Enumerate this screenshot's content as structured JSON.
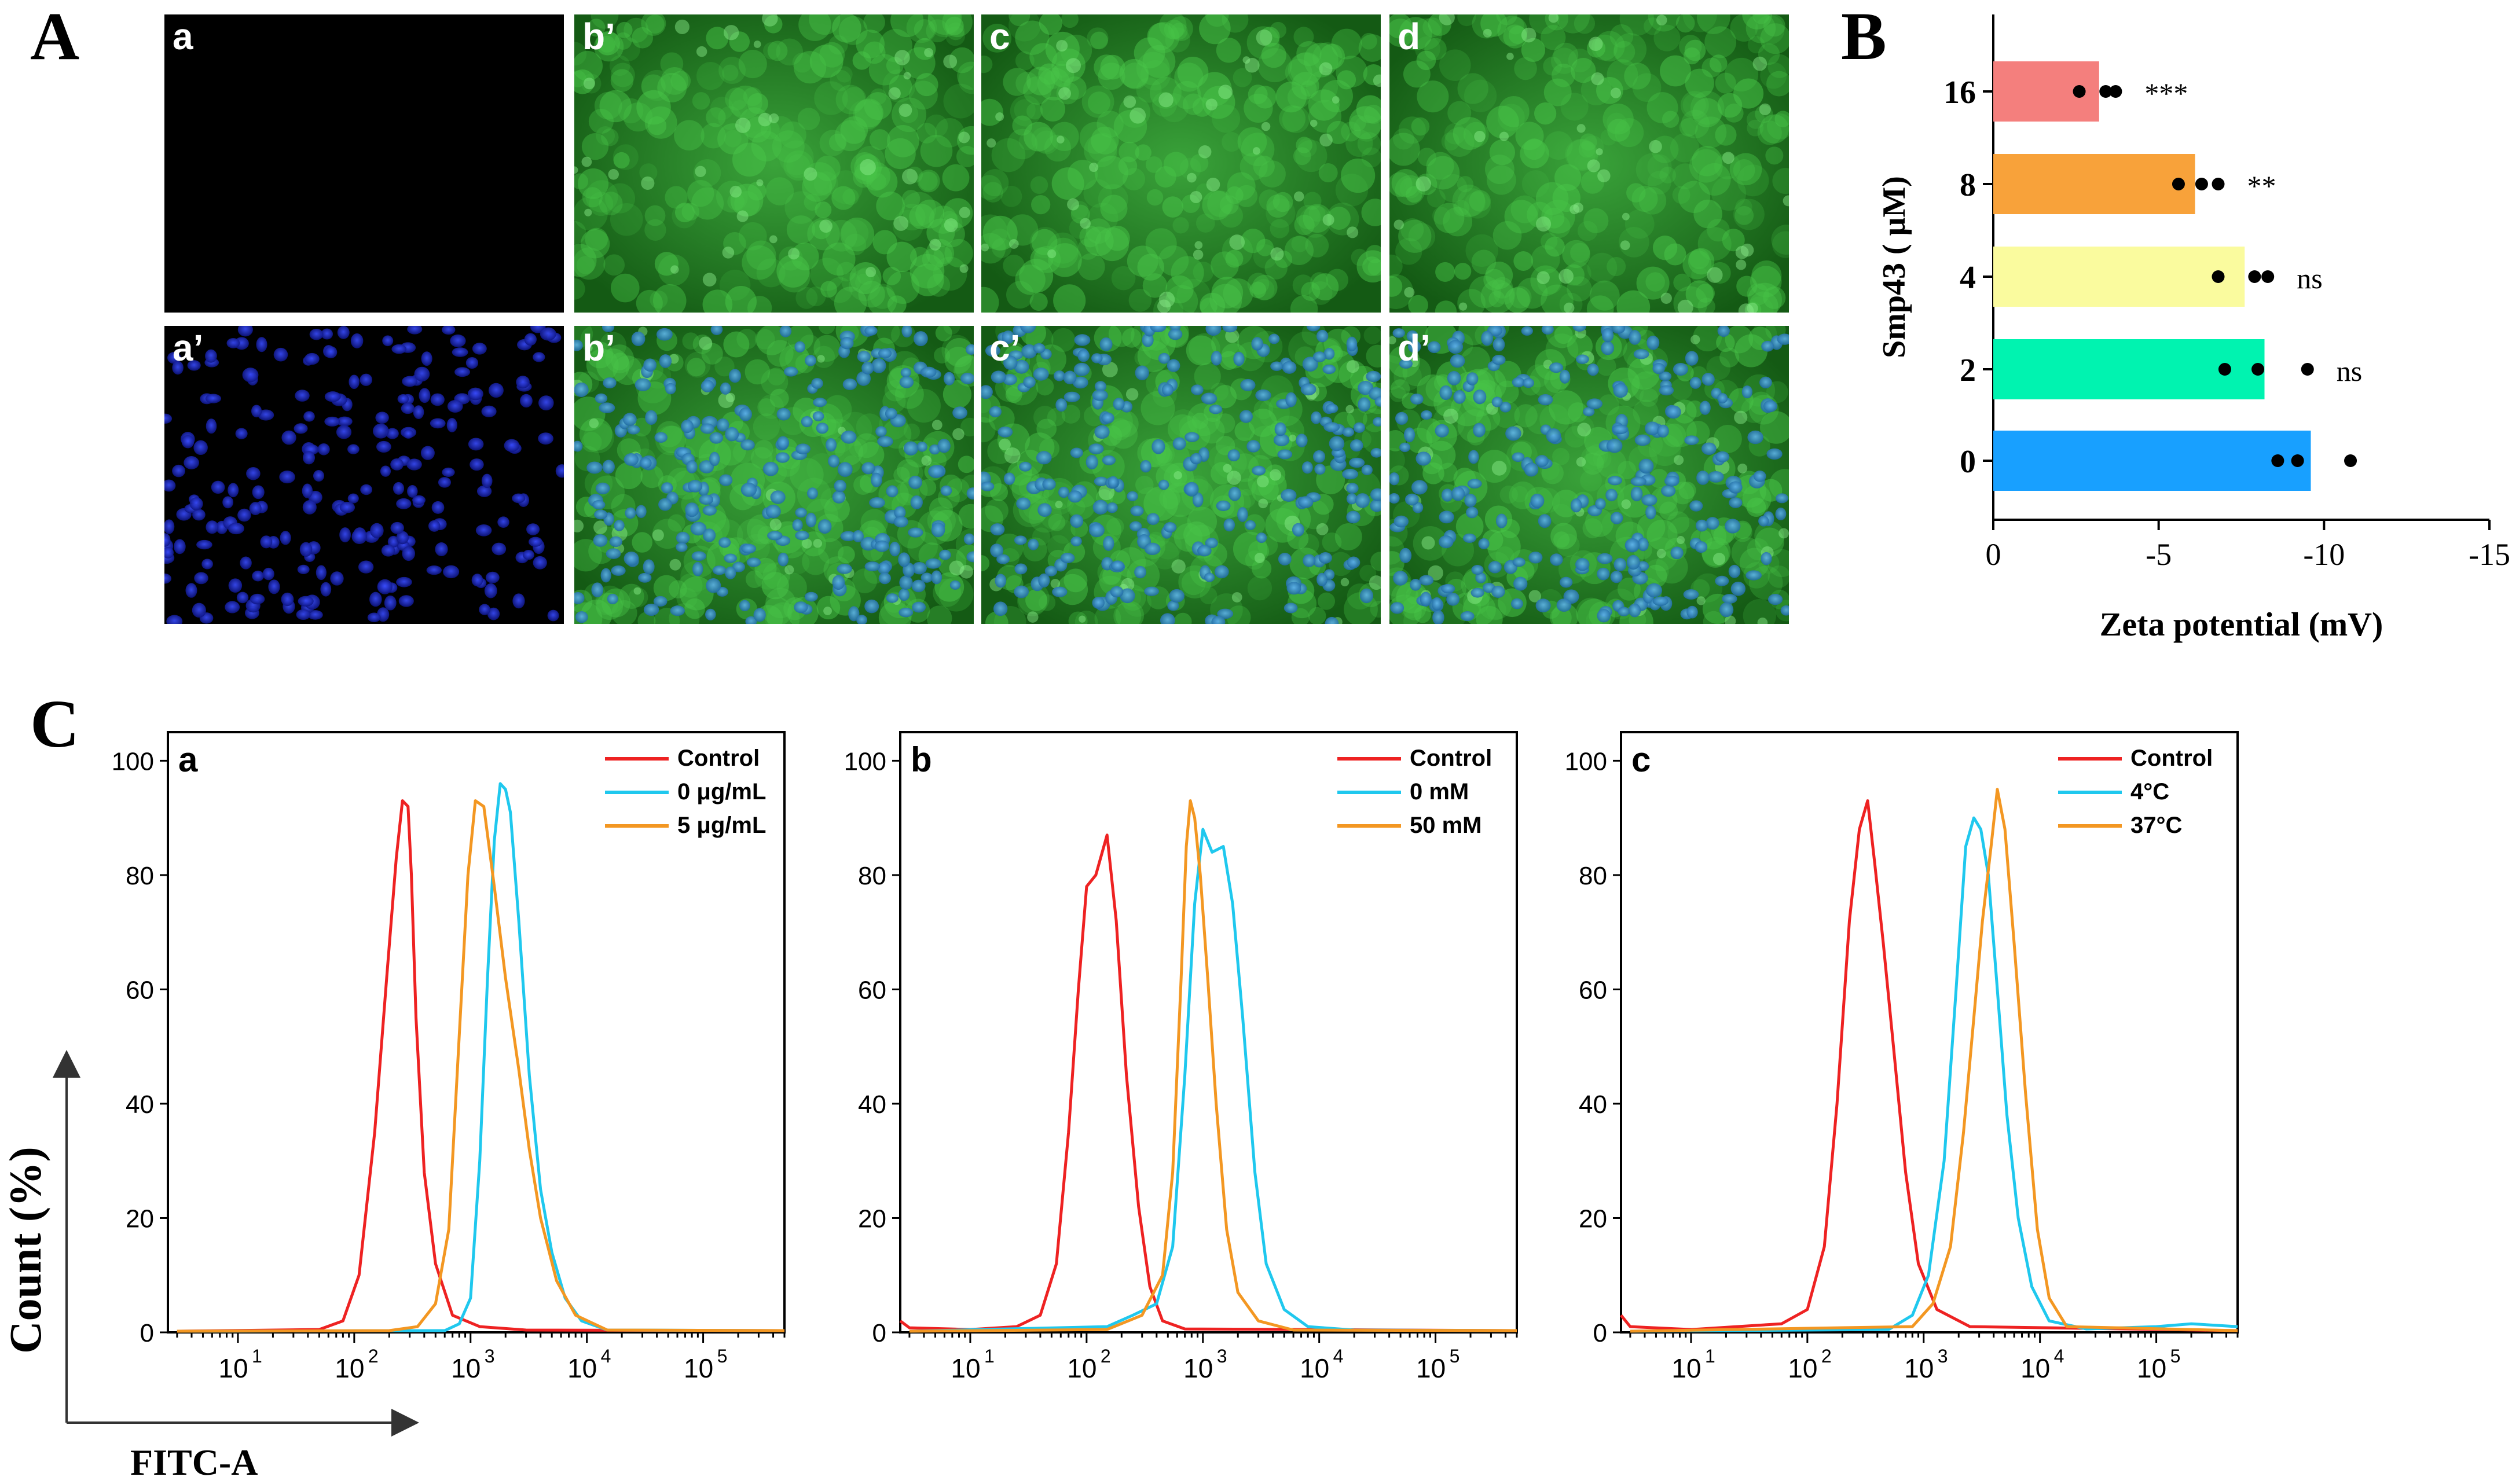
{
  "panel_letters": {
    "A": "A",
    "B": "B",
    "C": "C"
  },
  "micro": {
    "tiles": [
      {
        "label": "a",
        "stain": "empty"
      },
      {
        "label": "b’",
        "stain": "green"
      },
      {
        "label": "c",
        "stain": "green"
      },
      {
        "label": "d",
        "stain": "green"
      },
      {
        "label": "a’",
        "stain": "blue"
      },
      {
        "label": "b’",
        "stain": "merge"
      },
      {
        "label": "c’",
        "stain": "merge"
      },
      {
        "label": "d’",
        "stain": "merge"
      }
    ],
    "colors": {
      "green": "#1f8a1f",
      "blue": "#1f2fd8",
      "nucleus_merge": "#3a8cc8",
      "background": "#000000"
    }
  },
  "chart_data": [
    {
      "id": "B",
      "type": "bar",
      "orientation": "horizontal",
      "ylabel": "Smp43 ( μM)",
      "xlabel": "Zeta potential (mV)",
      "xlim": [
        0,
        -15
      ],
      "xticks": [
        0,
        -5,
        -10,
        -15
      ],
      "xtick_labels": [
        "0",
        "-5",
        "-10",
        "-15"
      ],
      "categories": [
        "16",
        "8",
        "4",
        "2",
        "0"
      ],
      "values": [
        -3.2,
        -6.1,
        -7.6,
        -8.2,
        -9.6
      ],
      "points": [
        [
          -2.6,
          -3.4,
          -3.7
        ],
        [
          -5.6,
          -6.3,
          -6.8
        ],
        [
          -6.8,
          -7.9,
          -8.3
        ],
        [
          -7.0,
          -8.0,
          -9.5
        ],
        [
          -8.6,
          -9.2,
          -10.8
        ]
      ],
      "significance": [
        "***",
        "**",
        "ns",
        "ns",
        ""
      ],
      "bar_colors": [
        "#f47f7d",
        "#f8a23a",
        "#fafb9e",
        "#00f3b0",
        "#18a0ff"
      ]
    },
    {
      "id": "C-a",
      "type": "line",
      "panel_label": "a",
      "xscale": "log",
      "xlim": [
        2.5,
        500000
      ],
      "ylim": [
        0,
        105
      ],
      "yticks": [
        0,
        20,
        40,
        60,
        80,
        100
      ],
      "ytick_labels": [
        "0",
        "20",
        "40",
        "60",
        "80",
        "100"
      ],
      "xticks": [
        10,
        100,
        1000,
        10000,
        100000
      ],
      "xtick_labels": [
        "1",
        "2",
        "3",
        "4",
        "5"
      ],
      "series": [
        {
          "name": "Control",
          "color": "#ee2222",
          "points": [
            [
              3,
              0.2
            ],
            [
              50,
              0.5
            ],
            [
              80,
              2
            ],
            [
              110,
              10
            ],
            [
              150,
              35
            ],
            [
              190,
              62
            ],
            [
              230,
              83
            ],
            [
              260,
              93
            ],
            [
              290,
              92
            ],
            [
              310,
              80
            ],
            [
              340,
              55
            ],
            [
              400,
              28
            ],
            [
              500,
              12
            ],
            [
              700,
              3
            ],
            [
              1200,
              1
            ],
            [
              3000,
              0.4
            ],
            [
              500000,
              0.3
            ]
          ]
        },
        {
          "name": "0 μg/mL",
          "color": "#1fc8ee",
          "points": [
            [
              3,
              0.2
            ],
            [
              600,
              0.3
            ],
            [
              800,
              1.5
            ],
            [
              1000,
              6
            ],
            [
              1200,
              30
            ],
            [
              1400,
              62
            ],
            [
              1600,
              86
            ],
            [
              1800,
              96
            ],
            [
              2000,
              95
            ],
            [
              2200,
              91
            ],
            [
              2600,
              72
            ],
            [
              3200,
              45
            ],
            [
              4000,
              25
            ],
            [
              5000,
              14
            ],
            [
              6500,
              6
            ],
            [
              9000,
              2
            ],
            [
              15000,
              0.4
            ],
            [
              500000,
              0.3
            ]
          ]
        },
        {
          "name": "5 μg/mL",
          "color": "#f39722",
          "points": [
            [
              3,
              0.2
            ],
            [
              200,
              0.3
            ],
            [
              350,
              1
            ],
            [
              500,
              5
            ],
            [
              650,
              18
            ],
            [
              800,
              52
            ],
            [
              950,
              80
            ],
            [
              1100,
              93
            ],
            [
              1300,
              92
            ],
            [
              1600,
              78
            ],
            [
              2000,
              62
            ],
            [
              2600,
              46
            ],
            [
              3200,
              32
            ],
            [
              4000,
              20
            ],
            [
              5500,
              9
            ],
            [
              8000,
              3
            ],
            [
              15000,
              0.4
            ],
            [
              500000,
              0.3
            ]
          ]
        }
      ]
    },
    {
      "id": "C-b",
      "type": "line",
      "panel_label": "b",
      "xscale": "log",
      "xlim": [
        2.5,
        500000
      ],
      "ylim": [
        0,
        105
      ],
      "yticks": [
        0,
        20,
        40,
        60,
        80,
        100
      ],
      "ytick_labels": [
        "0",
        "20",
        "40",
        "60",
        "80",
        "100"
      ],
      "xticks": [
        10,
        100,
        1000,
        10000,
        100000
      ],
      "xtick_labels": [
        "1",
        "2",
        "3",
        "4",
        "5"
      ],
      "series": [
        {
          "name": "Control",
          "color": "#ee2222",
          "points": [
            [
              2.5,
              2
            ],
            [
              3,
              0.8
            ],
            [
              10,
              0.5
            ],
            [
              25,
              1
            ],
            [
              40,
              3
            ],
            [
              55,
              12
            ],
            [
              70,
              35
            ],
            [
              85,
              60
            ],
            [
              100,
              78
            ],
            [
              120,
              80
            ],
            [
              150,
              87
            ],
            [
              180,
              72
            ],
            [
              220,
              45
            ],
            [
              280,
              22
            ],
            [
              350,
              8
            ],
            [
              450,
              2
            ],
            [
              700,
              0.6
            ],
            [
              500000,
              0.3
            ]
          ]
        },
        {
          "name": "0 mM",
          "color": "#1fc8ee",
          "points": [
            [
              3,
              0.2
            ],
            [
              150,
              1
            ],
            [
              250,
              3
            ],
            [
              400,
              5
            ],
            [
              550,
              15
            ],
            [
              700,
              45
            ],
            [
              850,
              75
            ],
            [
              1000,
              88
            ],
            [
              1200,
              84
            ],
            [
              1500,
              85
            ],
            [
              1800,
              75
            ],
            [
              2200,
              55
            ],
            [
              2800,
              28
            ],
            [
              3500,
              12
            ],
            [
              5000,
              4
            ],
            [
              8000,
              1
            ],
            [
              20000,
              0.4
            ],
            [
              500000,
              0.3
            ]
          ]
        },
        {
          "name": "50 mM",
          "color": "#f39722",
          "points": [
            [
              3,
              0.2
            ],
            [
              150,
              0.5
            ],
            [
              300,
              3
            ],
            [
              450,
              10
            ],
            [
              550,
              28
            ],
            [
              650,
              62
            ],
            [
              720,
              85
            ],
            [
              780,
              93
            ],
            [
              850,
              90
            ],
            [
              950,
              80
            ],
            [
              1100,
              62
            ],
            [
              1300,
              40
            ],
            [
              1600,
              18
            ],
            [
              2000,
              7
            ],
            [
              3000,
              2
            ],
            [
              6000,
              0.4
            ],
            [
              500000,
              0.3
            ]
          ]
        }
      ]
    },
    {
      "id": "C-c",
      "type": "line",
      "panel_label": "c",
      "xscale": "log",
      "xlim": [
        2.5,
        500000
      ],
      "ylim": [
        0,
        105
      ],
      "yticks": [
        0,
        20,
        40,
        60,
        80,
        100
      ],
      "ytick_labels": [
        "0",
        "20",
        "40",
        "60",
        "80",
        "100"
      ],
      "xticks": [
        10,
        100,
        1000,
        10000,
        100000
      ],
      "xtick_labels": [
        "1",
        "2",
        "3",
        "4",
        "5"
      ],
      "series": [
        {
          "name": "Control",
          "color": "#ee2222",
          "points": [
            [
              2.5,
              3
            ],
            [
              3,
              1
            ],
            [
              10,
              0.5
            ],
            [
              60,
              1.5
            ],
            [
              100,
              4
            ],
            [
              140,
              15
            ],
            [
              180,
              40
            ],
            [
              230,
              72
            ],
            [
              280,
              88
            ],
            [
              330,
              93
            ],
            [
              380,
              82
            ],
            [
              450,
              68
            ],
            [
              550,
              50
            ],
            [
              700,
              28
            ],
            [
              900,
              12
            ],
            [
              1300,
              4
            ],
            [
              2500,
              1
            ],
            [
              500000,
              0.3
            ]
          ]
        },
        {
          "name": "4°C",
          "color": "#1fc8ee",
          "points": [
            [
              3,
              0.2
            ],
            [
              500,
              0.5
            ],
            [
              800,
              3
            ],
            [
              1100,
              10
            ],
            [
              1500,
              30
            ],
            [
              1900,
              60
            ],
            [
              2300,
              85
            ],
            [
              2700,
              90
            ],
            [
              3100,
              88
            ],
            [
              3600,
              80
            ],
            [
              4300,
              60
            ],
            [
              5200,
              38
            ],
            [
              6500,
              20
            ],
            [
              8500,
              8
            ],
            [
              12000,
              2
            ],
            [
              25000,
              0.6
            ],
            [
              100000,
              1
            ],
            [
              200000,
              1.5
            ],
            [
              500000,
              1
            ]
          ]
        },
        {
          "name": "37°C",
          "color": "#f39722",
          "points": [
            [
              3,
              0.2
            ],
            [
              800,
              1
            ],
            [
              1200,
              5
            ],
            [
              1700,
              15
            ],
            [
              2200,
              35
            ],
            [
              2700,
              55
            ],
            [
              3200,
              72
            ],
            [
              3800,
              85
            ],
            [
              4300,
              95
            ],
            [
              5000,
              88
            ],
            [
              6000,
              68
            ],
            [
              7500,
              42
            ],
            [
              9500,
              18
            ],
            [
              12000,
              6
            ],
            [
              17000,
              1
            ],
            [
              500000,
              0.3
            ]
          ]
        }
      ]
    }
  ],
  "flow_axes": {
    "ylabel": "Count (%)",
    "xlabel": "FITC-A"
  }
}
